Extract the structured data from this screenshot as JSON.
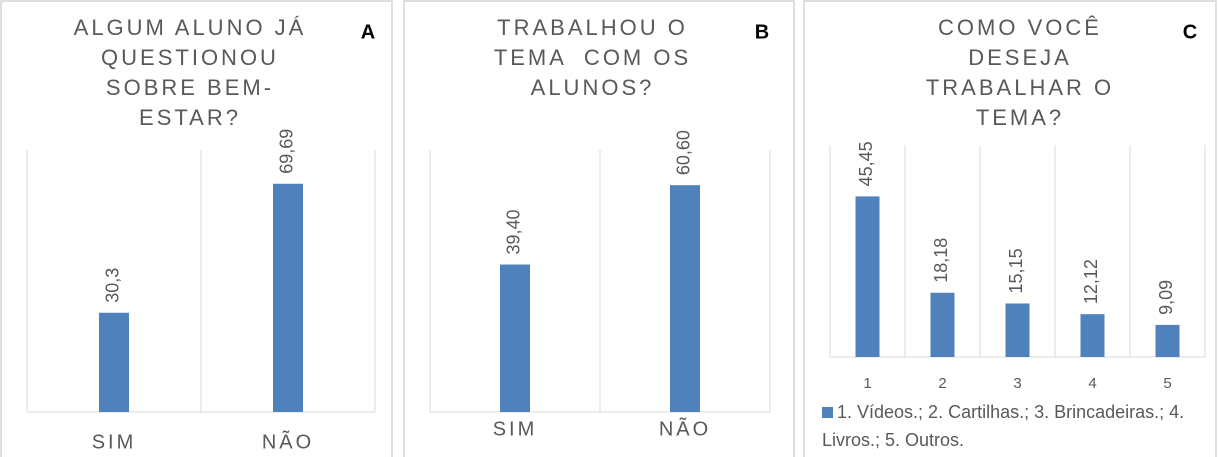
{
  "chart_data": [
    {
      "type": "bar",
      "panel_label": "A",
      "title": "ALGUM ALUNO JÁ QUESTIONOU SOBRE BEM-ESTAR?",
      "categories": [
        "SIM",
        "NÃO"
      ],
      "values": [
        30.3,
        69.69
      ],
      "value_labels": [
        "30,3",
        "69,69"
      ],
      "color": "#4f81bd",
      "ylim": [
        0,
        80
      ]
    },
    {
      "type": "bar",
      "panel_label": "B",
      "title": "TRABALHOU O TEMA  COM OS ALUNOS?",
      "categories": [
        "SIM",
        "NÃO"
      ],
      "values": [
        39.4,
        60.6
      ],
      "value_labels": [
        "39,40",
        "60,60"
      ],
      "color": "#4f81bd",
      "ylim": [
        0,
        70
      ]
    },
    {
      "type": "bar",
      "panel_label": "C",
      "title": "COMO VOCÊ DESEJA TRABALHAR O TEMA?",
      "categories": [
        "1",
        "2",
        "3",
        "4",
        "5"
      ],
      "series": [
        {
          "name": "1. Vídeos.; 2. Cartilhas.; 3. Brincadeiras.; 4. Livros.; 5. Outros.",
          "color": "#4f81bd",
          "values": [
            45.45,
            18.18,
            15.15,
            12.12,
            9.09
          ],
          "value_labels": [
            "45,45",
            "18,18",
            "15,15",
            "12,12",
            "9,09"
          ]
        }
      ],
      "ylim": [
        0,
        60
      ],
      "legend": "bottom"
    }
  ]
}
